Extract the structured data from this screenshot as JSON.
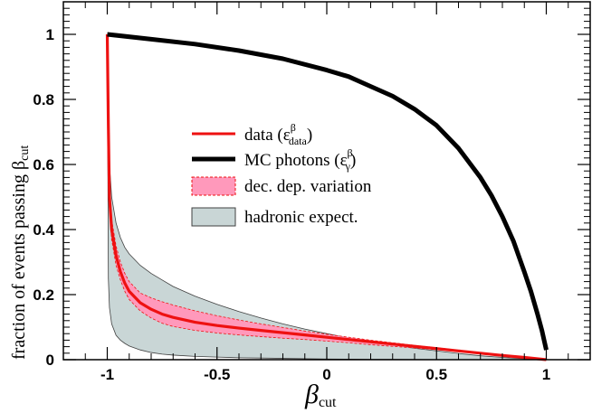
{
  "chart_data": {
    "type": "line",
    "title": "",
    "xlabel": "β",
    "xlabel_sub": "cut",
    "ylabel": "fraction of events passing β",
    "ylabel_sub": "cut",
    "xlim": [
      -1.2,
      1.2
    ],
    "ylim": [
      0,
      1.1
    ],
    "xticks": [
      -1,
      -0.5,
      0,
      0.5,
      1
    ],
    "xtick_labels": [
      "-1",
      "-0.5",
      "0",
      "0.5",
      "1"
    ],
    "yticks": [
      0,
      0.2,
      0.4,
      0.6,
      0.8,
      1
    ],
    "ytick_labels": [
      "0",
      "0.2",
      "0.4",
      "0.6",
      "0.8",
      "1"
    ],
    "grid": false,
    "legend_position": "center",
    "series": [
      {
        "name": "data",
        "legend_label": "data (ε",
        "legend_sup": "β",
        "legend_sub": "data",
        "legend_close": ")",
        "kind": "line",
        "color": "#ee1111",
        "x": [
          -1.0,
          -0.995,
          -0.99,
          -0.98,
          -0.96,
          -0.94,
          -0.92,
          -0.9,
          -0.85,
          -0.8,
          -0.75,
          -0.7,
          -0.6,
          -0.5,
          -0.4,
          -0.3,
          -0.2,
          -0.1,
          0.0,
          0.1,
          0.2,
          0.3,
          0.4,
          0.5,
          0.6,
          0.7,
          0.8,
          0.9,
          1.0
        ],
        "y": [
          1.0,
          0.72,
          0.5,
          0.4,
          0.32,
          0.27,
          0.235,
          0.21,
          0.175,
          0.155,
          0.14,
          0.13,
          0.115,
          0.105,
          0.097,
          0.09,
          0.083,
          0.076,
          0.069,
          0.062,
          0.055,
          0.048,
          0.041,
          0.034,
          0.027,
          0.02,
          0.013,
          0.007,
          0.0
        ]
      },
      {
        "name": "MC photons",
        "legend_label": "MC photons (ε",
        "legend_sup": "β",
        "legend_sub": "γ",
        "legend_close": ")",
        "kind": "line",
        "color": "#000000",
        "x": [
          -1.0,
          -0.8,
          -0.6,
          -0.4,
          -0.2,
          0.0,
          0.1,
          0.2,
          0.3,
          0.4,
          0.5,
          0.6,
          0.7,
          0.75,
          0.8,
          0.85,
          0.9,
          0.93,
          0.96,
          0.98,
          0.99,
          1.0
        ],
        "y": [
          1.0,
          0.985,
          0.97,
          0.95,
          0.925,
          0.89,
          0.87,
          0.84,
          0.81,
          0.77,
          0.72,
          0.65,
          0.56,
          0.505,
          0.44,
          0.365,
          0.27,
          0.21,
          0.14,
          0.09,
          0.06,
          0.03
        ]
      },
      {
        "name": "dec. dep. variation",
        "legend_label": "dec. dep. variation",
        "kind": "band",
        "fill": "#ff99bb",
        "stroke": "#ee1111",
        "x": [
          -1.0,
          -0.995,
          -0.99,
          -0.98,
          -0.96,
          -0.94,
          -0.92,
          -0.9,
          -0.85,
          -0.8,
          -0.75,
          -0.7,
          -0.6,
          -0.5,
          -0.4,
          -0.3,
          -0.2,
          -0.1,
          0.0,
          0.1,
          0.2,
          0.3,
          0.4,
          0.5,
          0.6,
          0.7,
          0.8,
          0.9,
          1.0
        ],
        "upper": [
          1.0,
          0.74,
          0.53,
          0.43,
          0.35,
          0.3,
          0.265,
          0.24,
          0.205,
          0.19,
          0.178,
          0.168,
          0.15,
          0.135,
          0.122,
          0.11,
          0.099,
          0.088,
          0.078,
          0.069,
          0.06,
          0.052,
          0.044,
          0.037,
          0.029,
          0.022,
          0.015,
          0.008,
          0.0
        ],
        "lower": [
          1.0,
          0.7,
          0.47,
          0.37,
          0.29,
          0.245,
          0.21,
          0.185,
          0.15,
          0.128,
          0.112,
          0.102,
          0.09,
          0.082,
          0.076,
          0.071,
          0.066,
          0.062,
          0.057,
          0.052,
          0.046,
          0.041,
          0.036,
          0.031,
          0.025,
          0.018,
          0.012,
          0.006,
          0.0
        ]
      },
      {
        "name": "hadronic expect.",
        "legend_label": "hadronic expect.",
        "kind": "band",
        "fill": "#c9d6d6",
        "stroke": "#404040",
        "x": [
          -1.0,
          -0.995,
          -0.99,
          -0.98,
          -0.96,
          -0.94,
          -0.92,
          -0.9,
          -0.85,
          -0.8,
          -0.75,
          -0.7,
          -0.6,
          -0.5,
          -0.4,
          -0.3,
          -0.2,
          -0.1,
          0.0,
          0.1,
          0.2,
          0.3,
          0.4,
          0.5,
          0.6,
          0.7,
          0.8,
          0.9,
          1.0
        ],
        "upper": [
          1.0,
          0.75,
          0.6,
          0.5,
          0.42,
          0.375,
          0.345,
          0.325,
          0.29,
          0.265,
          0.245,
          0.225,
          0.195,
          0.17,
          0.148,
          0.128,
          0.11,
          0.094,
          0.08,
          0.067,
          0.055,
          0.045,
          0.035,
          0.027,
          0.019,
          0.012,
          0.007,
          0.003,
          0.0
        ],
        "lower": [
          1.0,
          0.25,
          0.16,
          0.11,
          0.075,
          0.06,
          0.05,
          0.042,
          0.03,
          0.022,
          0.017,
          0.014,
          0.01,
          0.008,
          0.006,
          0.005,
          0.004,
          0.003,
          0.002,
          0.0015,
          0.001,
          0.0008,
          0.0005,
          0.0003,
          0.0002,
          0.0001,
          0.0,
          0.0,
          0.0
        ]
      }
    ]
  }
}
